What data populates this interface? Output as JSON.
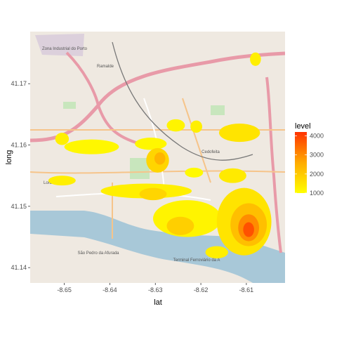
{
  "chart_data": {
    "type": "heatmap",
    "title": "",
    "xlabel": "lat",
    "ylabel": "long",
    "xlim": [
      -8.6575,
      -8.6015
    ],
    "ylim": [
      41.1375,
      41.1785
    ],
    "x_ticks": [
      -8.65,
      -8.64,
      -8.63,
      -8.62,
      -8.61
    ],
    "x_tick_labels": [
      "-8.65",
      "-8.64",
      "-8.63",
      "-8.62",
      "-8.61"
    ],
    "y_ticks": [
      41.14,
      41.15,
      41.16,
      41.17
    ],
    "y_tick_labels": [
      "41.14",
      "41.15",
      "41.16",
      "41.17"
    ],
    "legend": {
      "title": "level",
      "position": "right",
      "range": [
        1000,
        4200
      ],
      "ticks": [
        1000,
        2000,
        3000,
        4000
      ],
      "tick_labels": [
        "1000",
        "2000",
        "3000",
        "4000"
      ],
      "color_low": "#ffff00",
      "color_high": "#ff3300"
    },
    "background": "street map tiles",
    "map_labels": [
      "Zona Industrial do Porto",
      "Ramalde",
      "Cedofeita",
      "Lordelo",
      "São Pedro da Afurada",
      "Terminal Ferroviário da A"
    ],
    "density_regions": [
      {
        "x": -8.6505,
        "y": 41.161,
        "rx": 0.0015,
        "ry": 0.001,
        "level": 1300
      },
      {
        "x": -8.644,
        "y": 41.1597,
        "rx": 0.006,
        "ry": 0.0012,
        "level": 1150
      },
      {
        "x": -8.631,
        "y": 41.1602,
        "rx": 0.0035,
        "ry": 0.001,
        "level": 1150
      },
      {
        "x": -8.6295,
        "y": 41.1575,
        "rx": 0.0025,
        "ry": 0.002,
        "level": 1800
      },
      {
        "x": -8.629,
        "y": 41.1578,
        "rx": 0.0012,
        "ry": 0.001,
        "level": 2400
      },
      {
        "x": -8.6255,
        "y": 41.1632,
        "rx": 0.002,
        "ry": 0.001,
        "level": 1200
      },
      {
        "x": -8.621,
        "y": 41.163,
        "rx": 0.0013,
        "ry": 0.001,
        "level": 1300
      },
      {
        "x": -8.6115,
        "y": 41.162,
        "rx": 0.0045,
        "ry": 0.0015,
        "level": 1500
      },
      {
        "x": -8.608,
        "y": 41.174,
        "rx": 0.0012,
        "ry": 0.0011,
        "level": 1300
      },
      {
        "x": -8.6215,
        "y": 41.1555,
        "rx": 0.002,
        "ry": 0.0008,
        "level": 1100
      },
      {
        "x": -8.6505,
        "y": 41.1542,
        "rx": 0.003,
        "ry": 0.0008,
        "level": 1300
      },
      {
        "x": -8.632,
        "y": 41.1525,
        "rx": 0.01,
        "ry": 0.0012,
        "level": 1300
      },
      {
        "x": -8.6305,
        "y": 41.152,
        "rx": 0.003,
        "ry": 0.001,
        "level": 1800
      },
      {
        "x": -8.613,
        "y": 41.155,
        "rx": 0.003,
        "ry": 0.0012,
        "level": 1400
      },
      {
        "x": -8.623,
        "y": 41.148,
        "rx": 0.0075,
        "ry": 0.003,
        "level": 1200
      },
      {
        "x": -8.6105,
        "y": 41.1475,
        "rx": 0.006,
        "ry": 0.0055,
        "level": 1500
      },
      {
        "x": -8.6095,
        "y": 41.147,
        "rx": 0.004,
        "ry": 0.0035,
        "level": 2200
      },
      {
        "x": -8.6095,
        "y": 41.1465,
        "rx": 0.0023,
        "ry": 0.0022,
        "level": 3000
      },
      {
        "x": -8.6095,
        "y": 41.1462,
        "rx": 0.0012,
        "ry": 0.0012,
        "level": 3800
      },
      {
        "x": -8.6245,
        "y": 41.1468,
        "rx": 0.003,
        "ry": 0.0015,
        "level": 1900
      },
      {
        "x": -8.6165,
        "y": 41.1425,
        "rx": 0.0025,
        "ry": 0.001,
        "level": 1300
      }
    ]
  }
}
